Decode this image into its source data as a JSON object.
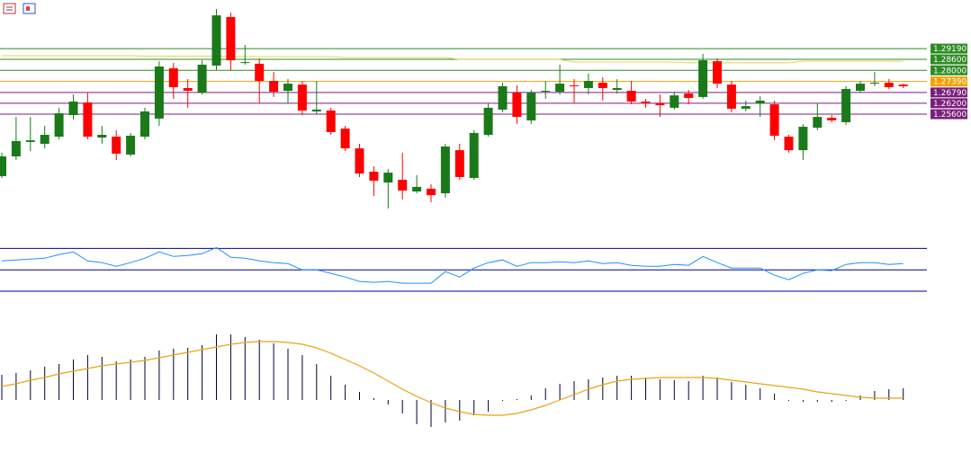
{
  "chart_data": [
    {
      "type": "candlestick",
      "up_color": "#1a7a1a",
      "down_color": "#ff0000",
      "ylim": [
        1.1896,
        1.3185
      ],
      "yticks": [
        {
          "value": 1.2919,
          "label": "1.29190"
        },
        {
          "value": 1.286,
          "label": "1.28600"
        },
        {
          "value": 1.28,
          "label": "1.28000"
        },
        {
          "value": 1.2739,
          "label": "1.27390"
        },
        {
          "value": 1.2679,
          "label": "1.26790"
        },
        {
          "value": 1.262,
          "label": "1.26200"
        },
        {
          "value": 1.256,
          "label": "1.25600"
        }
      ],
      "ytick_colors": [
        "#2e8b22",
        "#2e8b22",
        "#2e8b22",
        "#f5a000",
        "#7a1f7a",
        "#7a1f7a",
        "#7a1f7a"
      ],
      "open": [
        1.2221,
        1.2329,
        1.2408,
        1.2398,
        1.2437,
        1.2555,
        1.2624,
        1.2432,
        1.2437,
        1.2339,
        1.2437,
        1.2536,
        1.2811,
        1.2703,
        1.2678,
        1.2826,
        1.3092,
        1.2841,
        1.2836,
        1.2742,
        1.2688,
        1.2722,
        1.2575,
        1.258,
        1.2481,
        1.2373,
        1.2245,
        1.2186,
        1.2201,
        1.2137,
        1.2152,
        1.2127,
        1.2363,
        1.2211,
        1.2447,
        1.2585,
        1.2678,
        1.2526,
        1.2683,
        1.2683,
        1.2718,
        1.2703,
        1.2732,
        1.2693,
        1.2688,
        1.2629,
        1.2619,
        1.2595,
        1.2673,
        1.2654,
        1.285,
        1.2722,
        1.259,
        1.2619,
        1.2614,
        1.2437,
        1.2363,
        1.2486,
        1.254,
        1.2516,
        1.2688,
        1.2727,
        1.2732,
        1.2722
      ],
      "close": [
        1.2329,
        1.2413,
        1.2417,
        1.2447,
        1.2565,
        1.2629,
        1.2437,
        1.2447,
        1.2344,
        1.2442,
        1.2575,
        1.2821,
        1.2708,
        1.2688,
        1.2831,
        1.3101,
        1.2855,
        1.2845,
        1.2742,
        1.2683,
        1.2727,
        1.258,
        1.2585,
        1.2462,
        1.2373,
        1.2235,
        1.2196,
        1.224,
        1.2142,
        1.2162,
        1.2117,
        1.2383,
        1.2216,
        1.2457,
        1.2595,
        1.2713,
        1.2545,
        1.2678,
        1.2688,
        1.2727,
        1.2713,
        1.2742,
        1.2703,
        1.2703,
        1.2629,
        1.2619,
        1.2609,
        1.2663,
        1.2649,
        1.2855,
        1.2727,
        1.259,
        1.2604,
        1.2634,
        1.2442,
        1.2363,
        1.2491,
        1.2545,
        1.2526,
        1.2698,
        1.2727,
        1.2732,
        1.2708,
        1.2713
      ],
      "high": [
        1.2349,
        1.2545,
        1.2545,
        1.2496,
        1.2595,
        1.2668,
        1.2678,
        1.2496,
        1.2472,
        1.2457,
        1.2595,
        1.285,
        1.2841,
        1.2752,
        1.2855,
        1.3136,
        1.3116,
        1.2939,
        1.2865,
        1.2791,
        1.2752,
        1.2742,
        1.2742,
        1.2595,
        1.2496,
        1.2398,
        1.2275,
        1.226,
        1.2349,
        1.2226,
        1.2176,
        1.2398,
        1.2398,
        1.2472,
        1.2619,
        1.2732,
        1.2718,
        1.2693,
        1.2742,
        1.2831,
        1.2752,
        1.2782,
        1.2762,
        1.2752,
        1.2742,
        1.2644,
        1.2668,
        1.2683,
        1.2693,
        1.289,
        1.2865,
        1.2742,
        1.2634,
        1.2659,
        1.2634,
        1.2447,
        1.2506,
        1.2619,
        1.2555,
        1.2713,
        1.2742,
        1.2791,
        1.2752,
        1.2727
      ],
      "low": [
        1.2211,
        1.2309,
        1.2358,
        1.2373,
        1.2422,
        1.2531,
        1.2422,
        1.2398,
        1.2309,
        1.2329,
        1.2422,
        1.2496,
        1.2644,
        1.2595,
        1.2668,
        1.2801,
        1.2801,
        1.2831,
        1.2619,
        1.2654,
        1.2619,
        1.2555,
        1.256,
        1.2447,
        1.2358,
        1.2216,
        1.2112,
        1.2044,
        1.2093,
        1.2127,
        1.2078,
        1.2103,
        1.2201,
        1.2201,
        1.2437,
        1.257,
        1.2506,
        1.2506,
        1.2644,
        1.2668,
        1.2619,
        1.2668,
        1.2634,
        1.2673,
        1.2614,
        1.2595,
        1.2545,
        1.2585,
        1.2614,
        1.2644,
        1.2703,
        1.257,
        1.2575,
        1.2545,
        1.2417,
        1.2349,
        1.2309,
        1.2472,
        1.2516,
        1.2501,
        1.2678,
        1.2713,
        1.2698,
        1.2703
      ],
      "ma": {
        "color": "#e8d44d",
        "values": [
          1.288,
          1.288,
          1.288,
          1.288,
          1.288,
          1.288,
          1.288,
          1.288,
          1.288,
          1.288,
          1.2878,
          1.2878,
          1.2878,
          1.2878,
          1.2878,
          1.2878,
          1.2875,
          1.2875,
          1.2875,
          1.2875,
          1.2875,
          1.2875,
          1.2875,
          1.2875,
          1.287,
          1.287,
          1.287,
          1.287,
          1.287,
          1.287,
          1.287,
          1.287,
          1.286,
          1.286,
          1.286,
          1.286,
          1.286,
          1.286,
          1.286,
          1.286,
          1.2845,
          1.2845,
          1.2845,
          1.2845,
          1.2845,
          1.2845,
          1.2845,
          1.2845,
          1.2841,
          1.2841,
          1.2841,
          1.2841,
          1.2841,
          1.2841,
          1.2841,
          1.2841,
          1.285,
          1.285,
          1.285,
          1.285,
          1.285,
          1.285,
          1.285,
          1.285
        ]
      }
    },
    {
      "type": "line",
      "ylim": [
        25,
        77
      ],
      "levels": [
        70,
        50,
        30
      ],
      "level_color": "#00008b",
      "series": [
        {
          "color": "#1e90ff",
          "values": [
            58.3,
            59.2,
            60,
            60.8,
            64.2,
            66.7,
            58.3,
            56.7,
            53.3,
            56.7,
            60.8,
            66.7,
            62.5,
            63.3,
            65,
            70.8,
            61.7,
            60.8,
            58.3,
            56.7,
            55.8,
            50,
            50,
            46.7,
            43.3,
            39.2,
            38.3,
            39.2,
            37.5,
            37.5,
            37.5,
            48.3,
            43.3,
            51.7,
            56.7,
            59.2,
            53.3,
            56.7,
            56.7,
            57.5,
            56.7,
            58.3,
            55.8,
            56.7,
            54.2,
            53.3,
            53.3,
            55,
            54.2,
            62.5,
            56.7,
            51.7,
            51.7,
            51.7,
            45,
            40.8,
            46.7,
            50,
            49.2,
            55,
            56.7,
            56.7,
            55,
            55.8
          ]
        }
      ]
    },
    {
      "type": "bar",
      "ylim": [
        -0.0035,
        0.0105
      ],
      "color": "#000033",
      "values": [
        0.0028,
        0.003,
        0.0033,
        0.0037,
        0.004,
        0.0045,
        0.005,
        0.0048,
        0.0043,
        0.0045,
        0.0048,
        0.0055,
        0.0057,
        0.0058,
        0.0061,
        0.0073,
        0.0073,
        0.007,
        0.0067,
        0.0063,
        0.0057,
        0.005,
        0.004,
        0.0027,
        0.0017,
        0.0009,
        0.0002,
        -0.0005,
        -0.0015,
        -0.0027,
        -0.003,
        -0.0025,
        -0.0023,
        -0.0017,
        -0.0013,
        -0.0001,
        0.0001,
        0.0005,
        0.0013,
        0.0018,
        0.0021,
        0.0023,
        0.0025,
        0.0027,
        0.0027,
        0.0025,
        0.0023,
        0.0022,
        0.0021,
        0.0027,
        0.0025,
        0.002,
        0.0017,
        0.0013,
        0.0007,
        0,
        -0.0002,
        -0.0002,
        -0.0002,
        -0.0001,
        0.0005,
        0.001,
        0.0012,
        0.0013
      ],
      "signal": {
        "color": "#e8a317",
        "values": [
          0.0015,
          0.0018,
          0.0022,
          0.0025,
          0.0029,
          0.0032,
          0.0035,
          0.0038,
          0.004,
          0.0042,
          0.0044,
          0.0047,
          0.005,
          0.0053,
          0.0056,
          0.0059,
          0.0062,
          0.0064,
          0.0065,
          0.0065,
          0.0064,
          0.0062,
          0.0058,
          0.0052,
          0.0045,
          0.0038,
          0.003,
          0.0021,
          0.0012,
          0.0004,
          -0.0003,
          -0.0009,
          -0.0013,
          -0.0016,
          -0.0017,
          -0.0017,
          -0.0015,
          -0.0011,
          -0.0006,
          0,
          0.0006,
          0.0012,
          0.0017,
          0.0021,
          0.0023,
          0.0024,
          0.0025,
          0.0025,
          0.0025,
          0.0025,
          0.0024,
          0.0022,
          0.002,
          0.0018,
          0.0016,
          0.0014,
          0.0012,
          0.0009,
          0.0007,
          0.0005,
          0.0003,
          0.0002,
          0.0002,
          0.0002
        ]
      }
    }
  ]
}
